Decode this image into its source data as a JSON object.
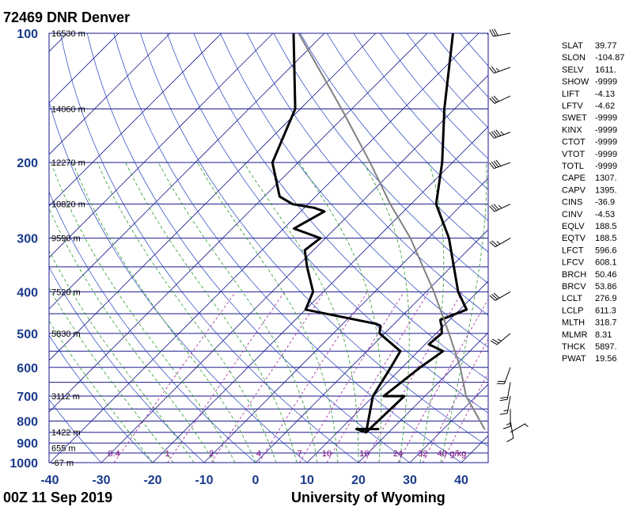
{
  "header": {
    "title": "72469 DNR Denver"
  },
  "footer": {
    "time": "00Z 11 Sep 2019",
    "source": "University of Wyoming"
  },
  "colors": {
    "isobar": "#1a1a8c",
    "isotherm": "#1a1a8c",
    "dry_adiabat": "#1f3fbf",
    "moist_adiabat": "#2a9a2a",
    "mixing_ratio": "#a020a0",
    "sounding": "#000000",
    "parcel": "#808080",
    "pressure_label": "#1a3a8a",
    "mixing_label": "#7a007a"
  },
  "chart_data": {
    "type": "line",
    "title": "72469 DNR Denver",
    "subtitle": "00Z 11 Sep 2019",
    "x_axis": {
      "ticks": [
        -40,
        -30,
        -20,
        -10,
        0,
        10,
        20,
        30,
        40
      ],
      "range": [
        -40,
        45
      ],
      "skew": "45-degree skew-T"
    },
    "y_axis": {
      "scale": "log-pressure",
      "range": [
        1000,
        100
      ],
      "ticks": [
        100,
        200,
        300,
        400,
        500,
        600,
        700,
        800,
        900,
        1000
      ]
    },
    "height_labels": [
      {
        "p": 100,
        "text": "16530 m"
      },
      {
        "p": 150,
        "text": "14060 m"
      },
      {
        "p": 200,
        "text": "12270 m"
      },
      {
        "p": 250,
        "text": "10820 m"
      },
      {
        "p": 300,
        "text": "9590 m"
      },
      {
        "p": 400,
        "text": "7520 m"
      },
      {
        "p": 500,
        "text": "5830 m"
      },
      {
        "p": 700,
        "text": "3112 m"
      },
      {
        "p": 850,
        "text": "1422 m"
      },
      {
        "p": 925,
        "text": "655 m"
      },
      {
        "p": 1000,
        "text": "-67 m"
      }
    ],
    "mixing_ratio_labels": [
      "0.4",
      "1",
      "2",
      "4",
      "7",
      "10",
      "16",
      "24",
      "32",
      "40",
      "g/kg"
    ],
    "series": [
      {
        "kind": "temperature",
        "points": [
          [
            835,
            17.3
          ],
          [
            835,
            13.1
          ],
          [
            850,
            15.6
          ],
          [
            700,
            16.0
          ],
          [
            700,
            12.0
          ],
          [
            600,
            13.5
          ],
          [
            550,
            14.8
          ],
          [
            530,
            10.7
          ],
          [
            500,
            11.1
          ],
          [
            480,
            9.6
          ],
          [
            475,
            9.1
          ],
          [
            465,
            8.2
          ],
          [
            440,
            11.3
          ],
          [
            400,
            6.2
          ],
          [
            300,
            -6.0
          ],
          [
            250,
            -15.1
          ],
          [
            200,
            -22.0
          ],
          [
            150,
            -32.0
          ],
          [
            100,
            -45.0
          ]
        ]
      },
      {
        "kind": "dewpoint",
        "points": [
          [
            835,
            13.1
          ],
          [
            850,
            15.6
          ],
          [
            700,
            9.9
          ],
          [
            600,
            7.8
          ],
          [
            550,
            6.5
          ],
          [
            500,
            -1.0
          ],
          [
            480,
            -2.3
          ],
          [
            475,
            -3.5
          ],
          [
            440,
            -20.0
          ],
          [
            400,
            -22.0
          ],
          [
            350,
            -28.0
          ],
          [
            320,
            -31.7
          ],
          [
            300,
            -31.0
          ],
          [
            285,
            -38.0
          ],
          [
            260,
            -35.4
          ],
          [
            255,
            -38.1
          ],
          [
            250,
            -43.0
          ],
          [
            240,
            -47.0
          ],
          [
            200,
            -55.0
          ],
          [
            150,
            -61.0
          ],
          [
            100,
            -76.0
          ]
        ]
      },
      {
        "kind": "parcel",
        "points": [
          [
            835,
            38
          ],
          [
            700,
            28
          ],
          [
            600,
            21.3
          ],
          [
            500,
            12.5
          ],
          [
            400,
            1.5
          ],
          [
            300,
            -13.5
          ],
          [
            250,
            -24
          ],
          [
            200,
            -36
          ],
          [
            150,
            -52
          ],
          [
            100,
            -75
          ]
        ]
      }
    ],
    "wind_barbs": [
      {
        "p": 100,
        "dir": 260,
        "spd": 30
      },
      {
        "p": 120,
        "dir": 250,
        "spd": 25
      },
      {
        "p": 140,
        "dir": 245,
        "spd": 30
      },
      {
        "p": 170,
        "dir": 250,
        "spd": 45
      },
      {
        "p": 200,
        "dir": 250,
        "spd": 40
      },
      {
        "p": 250,
        "dir": 245,
        "spd": 35
      },
      {
        "p": 300,
        "dir": 240,
        "spd": 25
      },
      {
        "p": 400,
        "dir": 240,
        "spd": 30
      },
      {
        "p": 500,
        "dir": 230,
        "spd": 25
      },
      {
        "p": 600,
        "dir": 200,
        "spd": 20
      },
      {
        "p": 650,
        "dir": 190,
        "spd": 20
      },
      {
        "p": 700,
        "dir": 190,
        "spd": 15
      },
      {
        "p": 750,
        "dir": 180,
        "spd": 15
      },
      {
        "p": 800,
        "dir": 170,
        "spd": 10
      },
      {
        "p": 850,
        "dir": 60,
        "spd": 5
      }
    ],
    "indices": [
      {
        "name": "SLAT",
        "value": "39.77"
      },
      {
        "name": "SLON",
        "value": "-104.87"
      },
      {
        "name": "SELV",
        "value": "1611."
      },
      {
        "name": "SHOW",
        "value": "-9999"
      },
      {
        "name": "LIFT",
        "value": "-4.13"
      },
      {
        "name": "LFTV",
        "value": "-4.62"
      },
      {
        "name": "SWET",
        "value": "-9999"
      },
      {
        "name": "KINX",
        "value": "-9999"
      },
      {
        "name": "CTOT",
        "value": "-9999"
      },
      {
        "name": "VTOT",
        "value": "-9999"
      },
      {
        "name": "TOTL",
        "value": "-9999"
      },
      {
        "name": "CAPE",
        "value": "1307."
      },
      {
        "name": "CAPV",
        "value": "1395."
      },
      {
        "name": "CINS",
        "value": "-36.9"
      },
      {
        "name": "CINV",
        "value": "-4.53"
      },
      {
        "name": "EQLV",
        "value": "188.5"
      },
      {
        "name": "EQTV",
        "value": "188.5"
      },
      {
        "name": "LFCT",
        "value": "596.6"
      },
      {
        "name": "LFCV",
        "value": "608.1"
      },
      {
        "name": "BRCH",
        "value": "50.46"
      },
      {
        "name": "BRCV",
        "value": "53.86"
      },
      {
        "name": "LCLT",
        "value": "276.9"
      },
      {
        "name": "LCLP",
        "value": "611.3"
      },
      {
        "name": "MLTH",
        "value": "318.7"
      },
      {
        "name": "MLMR",
        "value": "8.31"
      },
      {
        "name": "THCK",
        "value": "5897."
      },
      {
        "name": "PWAT",
        "value": "19.56"
      }
    ]
  }
}
